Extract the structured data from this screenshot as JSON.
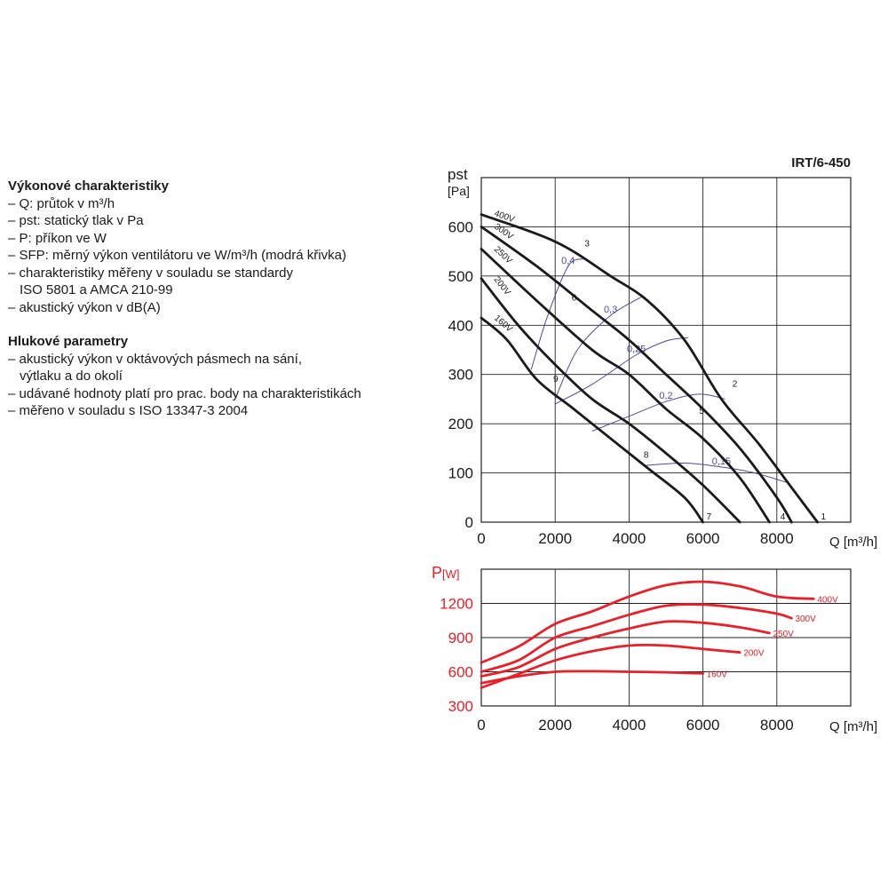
{
  "notes": {
    "section1_title": "Výkonové charakteristiky",
    "section1_items": [
      "– Q: průtok v m³/h",
      "– pst: statický tlak v Pa",
      "– P: příkon ve W",
      "– SFP: měrný výkon ventilátoru ve W/m³/h (modrá křivka)",
      "– charakteristiky měřeny v souladu se standardy",
      "ISO 5801 a AMCA 210-99",
      "– akustický výkon v dB(A)"
    ],
    "section2_title": "Hlukové parametry",
    "section2_items": [
      "– akustický výkon v oktávových pásmech na sání,",
      "výtlaku a do okolí",
      "– udávané hodnoty platí pro prac. body na charakteristikách",
      "– měřeno v souladu s ISO 13347-3 2004"
    ]
  },
  "chart_data": [
    {
      "type": "line",
      "title": "IRT/6-450",
      "ylabel_main": "pst",
      "ylabel_unit": "[Pa]",
      "xlabel": "Q [m³/h]",
      "xlim": [
        0,
        10000
      ],
      "ylim": [
        0,
        700
      ],
      "x_ticks": [
        "0",
        "2000",
        "4000",
        "6000",
        "8000"
      ],
      "y_ticks": [
        "0",
        "100",
        "200",
        "300",
        "400",
        "500",
        "600"
      ],
      "grid": true,
      "colors": {
        "curve": "#1a1a1a",
        "sfp": "#4a4aa0"
      },
      "series": [
        {
          "name": "400V",
          "points": [
            [
              0,
              625
            ],
            [
              2000,
              570
            ],
            [
              3500,
              500
            ],
            [
              4500,
              450
            ],
            [
              5500,
              370
            ],
            [
              6500,
              250
            ],
            [
              7500,
              160
            ],
            [
              8500,
              60
            ],
            [
              9100,
              0
            ]
          ]
        },
        {
          "name": "300V",
          "points": [
            [
              0,
              600
            ],
            [
              1500,
              520
            ],
            [
              3000,
              430
            ],
            [
              4000,
              370
            ],
            [
              5000,
              300
            ],
            [
              6000,
              230
            ],
            [
              7000,
              150
            ],
            [
              8000,
              50
            ],
            [
              8400,
              0
            ]
          ]
        },
        {
          "name": "250V",
          "points": [
            [
              0,
              555
            ],
            [
              1500,
              450
            ],
            [
              3000,
              350
            ],
            [
              4000,
              300
            ],
            [
              5000,
              230
            ],
            [
              6000,
              170
            ],
            [
              7000,
              90
            ],
            [
              7800,
              0
            ]
          ]
        },
        {
          "name": "200V",
          "points": [
            [
              0,
              495
            ],
            [
              1000,
              400
            ],
            [
              2000,
              320
            ],
            [
              3000,
              250
            ],
            [
              4000,
              200
            ],
            [
              5000,
              140
            ],
            [
              6000,
              75
            ],
            [
              7000,
              0
            ]
          ]
        },
        {
          "name": "160V",
          "points": [
            [
              0,
              415
            ],
            [
              700,
              370
            ],
            [
              1500,
              290
            ],
            [
              2500,
              230
            ],
            [
              3500,
              170
            ],
            [
              4500,
              110
            ],
            [
              5500,
              50
            ],
            [
              6000,
              0
            ]
          ]
        }
      ],
      "sfp_curves": [
        {
          "label": "0,4",
          "points": [
            [
              1350,
              310
            ],
            [
              1800,
              420
            ],
            [
              2350,
              520
            ],
            [
              2750,
              535
            ]
          ]
        },
        {
          "label": "0,3",
          "points": [
            [
              2000,
              250
            ],
            [
              2600,
              350
            ],
            [
              3500,
              420
            ],
            [
              4400,
              460
            ]
          ]
        },
        {
          "label": "0,25",
          "points": [
            [
              2000,
              240
            ],
            [
              3000,
              280
            ],
            [
              4200,
              340
            ],
            [
              5000,
              368
            ],
            [
              5600,
              375
            ]
          ]
        },
        {
          "label": "0,2",
          "points": [
            [
              3000,
              185
            ],
            [
              4000,
              215
            ],
            [
              5000,
              245
            ],
            [
              5900,
              260
            ],
            [
              6600,
              250
            ]
          ]
        },
        {
          "label": "0,15",
          "points": [
            [
              4400,
              115
            ],
            [
              5500,
              120
            ],
            [
              6500,
              112
            ],
            [
              7400,
              100
            ],
            [
              8300,
              80
            ]
          ]
        }
      ],
      "point_markers": [
        {
          "label": "1",
          "x": 9100,
          "y": 0
        },
        {
          "label": "2",
          "x": 6700,
          "y": 270
        },
        {
          "label": "3",
          "x": 2700,
          "y": 555
        },
        {
          "label": "4",
          "x": 8000,
          "y": 0
        },
        {
          "label": "5",
          "x": 5800,
          "y": 215
        },
        {
          "label": "6",
          "x": 2350,
          "y": 445
        },
        {
          "label": "7",
          "x": 6000,
          "y": 0
        },
        {
          "label": "8",
          "x": 4300,
          "y": 125
        },
        {
          "label": "9",
          "x": 1850,
          "y": 280
        }
      ]
    },
    {
      "type": "line",
      "ylabel_main": "P",
      "ylabel_unit": "[W]",
      "xlabel": "Q [m³/h]",
      "xlim": [
        0,
        10000
      ],
      "ylim": [
        300,
        1500
      ],
      "x_ticks": [
        "0",
        "2000",
        "4000",
        "6000",
        "8000"
      ],
      "y_ticks": [
        "300",
        "600",
        "900",
        "1200"
      ],
      "grid": true,
      "colors": {
        "curve": "#e8202a",
        "label": "#e8202a"
      },
      "series": [
        {
          "name": "400V",
          "points": [
            [
              0,
              680
            ],
            [
              1000,
              820
            ],
            [
              2000,
              1020
            ],
            [
              3000,
              1130
            ],
            [
              4000,
              1260
            ],
            [
              5000,
              1360
            ],
            [
              6000,
              1390
            ],
            [
              7000,
              1350
            ],
            [
              8000,
              1260
            ],
            [
              9000,
              1240
            ]
          ]
        },
        {
          "name": "300V",
          "points": [
            [
              0,
              600
            ],
            [
              1000,
              700
            ],
            [
              2000,
              900
            ],
            [
              3000,
              1000
            ],
            [
              4000,
              1100
            ],
            [
              5000,
              1180
            ],
            [
              6000,
              1190
            ],
            [
              7000,
              1160
            ],
            [
              8000,
              1110
            ],
            [
              8400,
              1070
            ]
          ]
        },
        {
          "name": "250V",
          "points": [
            [
              0,
              560
            ],
            [
              1000,
              640
            ],
            [
              2000,
              800
            ],
            [
              3000,
              900
            ],
            [
              4000,
              980
            ],
            [
              5000,
              1040
            ],
            [
              6000,
              1030
            ],
            [
              7000,
              990
            ],
            [
              7800,
              940
            ]
          ]
        },
        {
          "name": "200V",
          "points": [
            [
              0,
              460
            ],
            [
              1000,
              580
            ],
            [
              2000,
              700
            ],
            [
              3000,
              780
            ],
            [
              4000,
              830
            ],
            [
              5000,
              830
            ],
            [
              6000,
              800
            ],
            [
              7000,
              770
            ]
          ]
        },
        {
          "name": "160V",
          "points": [
            [
              0,
              500
            ],
            [
              1000,
              560
            ],
            [
              2000,
              600
            ],
            [
              3000,
              605
            ],
            [
              4000,
              600
            ],
            [
              5000,
              595
            ],
            [
              6000,
              585
            ]
          ]
        }
      ]
    }
  ]
}
